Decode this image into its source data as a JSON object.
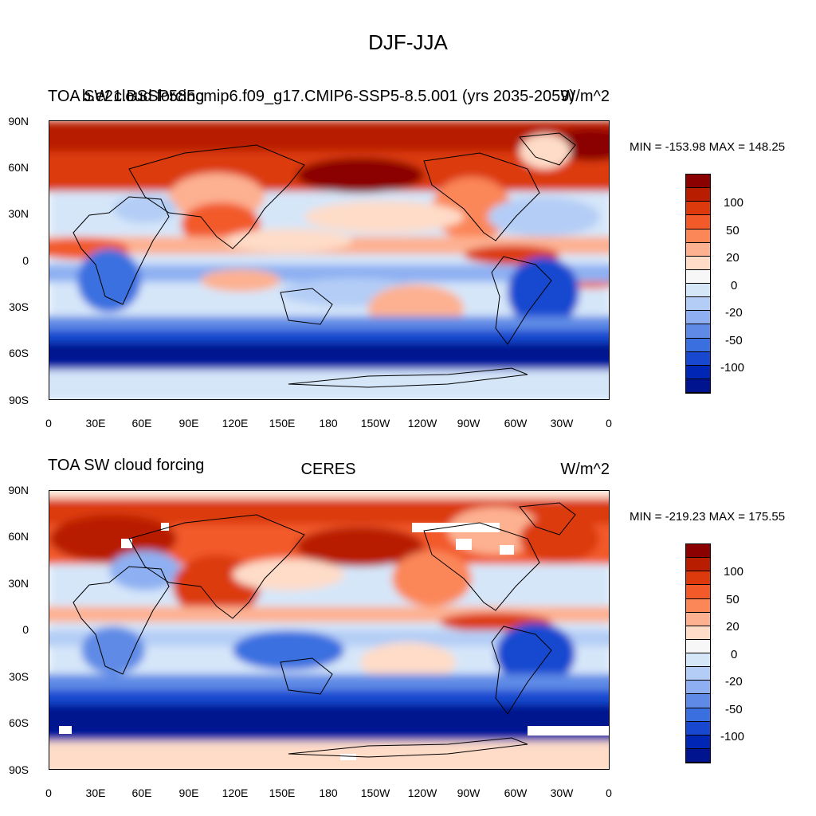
{
  "page_title": "DJF-JJA",
  "colorbar": {
    "colors": [
      "#8b0000",
      "#b81d00",
      "#dc3a0c",
      "#f25a2a",
      "#fb8658",
      "#fdb191",
      "#fedcc8",
      "#f7f7f7",
      "#d5e6f9",
      "#b4cdf6",
      "#8eb0f2",
      "#5f8be6",
      "#3a6fe0",
      "#1848d0",
      "#0026b5",
      "#00148f"
    ],
    "labels": [
      "100",
      "50",
      "20",
      "0",
      "-20",
      "-50",
      "-100"
    ]
  },
  "axes": {
    "lat_labels": [
      "90N",
      "60N",
      "30N",
      "0",
      "30S",
      "60S",
      "90S"
    ],
    "lon_labels": [
      "0",
      "30E",
      "60E",
      "90E",
      "120E",
      "150E",
      "180",
      "150W",
      "120W",
      "90W",
      "60W",
      "30W",
      "0"
    ]
  },
  "panels": [
    {
      "left_title": "TOA SW cloud forcing",
      "center_title": "b.e21.BSSP585cmip6.f09_g17.CMIP6-SSP5-8.5.001 (yrs 2035-2059)",
      "units": "W/m^2",
      "minmax": "MIN = -153.98 MAX = 148.25"
    },
    {
      "left_title": "TOA SW cloud forcing",
      "center_title": "CERES",
      "units": "W/m^2",
      "minmax": "MIN = -219.23 MAX = 175.55"
    }
  ]
}
